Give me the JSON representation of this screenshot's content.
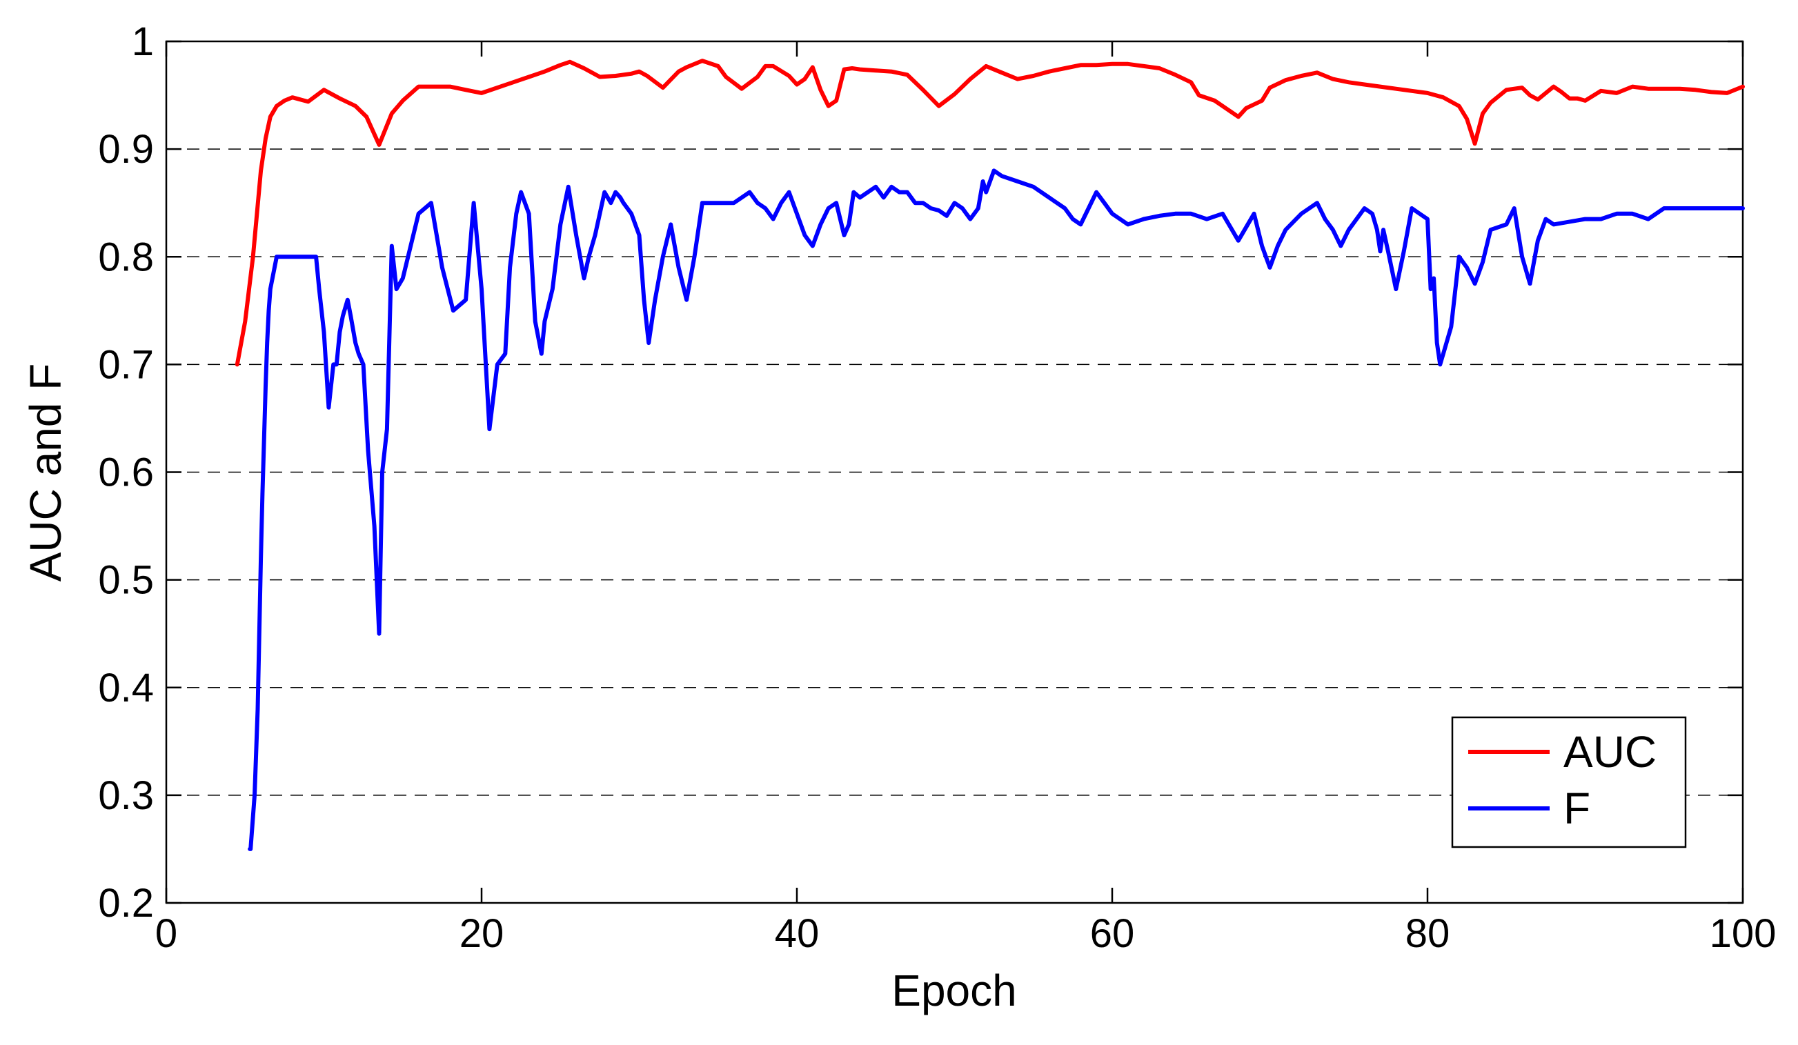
{
  "chart_data": {
    "type": "line",
    "title": "",
    "xlabel": "Epoch",
    "ylabel": "AUC and F",
    "xlim": [
      0,
      100
    ],
    "ylim": [
      0.2,
      1
    ],
    "x_ticks": [
      "0",
      "20",
      "40",
      "60",
      "80",
      "100"
    ],
    "y_ticks": [
      "0.2",
      "0.3",
      "0.4",
      "0.5",
      "0.6",
      "0.7",
      "0.8",
      "0.9",
      "1"
    ],
    "grid": "horizontal dashed",
    "legend_position": "bottom-right",
    "series": [
      {
        "name": "AUC",
        "color": "#ff0000",
        "x": [
          4.5,
          5,
          5.5,
          6,
          6.3,
          6.6,
          7,
          7.5,
          8,
          9,
          10,
          11,
          12,
          12.7,
          13.5,
          14.3,
          15,
          16,
          17,
          18,
          19,
          20,
          21,
          22,
          23,
          24,
          25,
          25.6,
          26.5,
          27.5,
          28.5,
          29.5,
          30,
          30.5,
          31.5,
          32.5,
          33,
          34,
          35,
          35.5,
          36.5,
          37.5,
          38,
          38.5,
          39.5,
          40,
          40.5,
          41,
          41.5,
          42,
          42.5,
          43,
          43.5,
          44,
          45,
          46,
          47,
          48,
          49,
          50,
          51,
          52,
          53,
          54,
          55,
          56,
          57,
          58,
          59,
          60,
          61,
          62,
          63,
          64,
          65,
          65.5,
          66.5,
          67.5,
          68,
          68.5,
          69.5,
          70,
          71,
          72,
          73,
          74,
          75,
          76,
          77,
          78,
          79,
          80,
          81,
          82,
          82.5,
          83,
          83.5,
          84,
          85,
          86,
          86.5,
          87,
          88,
          88.5,
          89,
          89.5,
          90,
          91,
          92,
          93,
          94,
          95,
          96,
          97,
          98,
          99,
          100
        ],
        "y": [
          0.7,
          0.74,
          0.8,
          0.88,
          0.91,
          0.93,
          0.94,
          0.945,
          0.948,
          0.944,
          0.955,
          0.947,
          0.94,
          0.93,
          0.904,
          0.933,
          0.945,
          0.958,
          0.958,
          0.958,
          0.955,
          0.952,
          0.957,
          0.962,
          0.967,
          0.972,
          0.978,
          0.981,
          0.975,
          0.967,
          0.968,
          0.97,
          0.972,
          0.968,
          0.957,
          0.972,
          0.976,
          0.982,
          0.977,
          0.967,
          0.956,
          0.967,
          0.977,
          0.977,
          0.968,
          0.96,
          0.965,
          0.976,
          0.955,
          0.94,
          0.945,
          0.974,
          0.975,
          0.974,
          0.973,
          0.972,
          0.969,
          0.955,
          0.94,
          0.951,
          0.965,
          0.977,
          0.971,
          0.965,
          0.968,
          0.972,
          0.975,
          0.978,
          0.978,
          0.979,
          0.979,
          0.977,
          0.975,
          0.969,
          0.962,
          0.95,
          0.945,
          0.935,
          0.93,
          0.938,
          0.945,
          0.957,
          0.964,
          0.968,
          0.971,
          0.965,
          0.962,
          0.96,
          0.958,
          0.956,
          0.954,
          0.952,
          0.948,
          0.94,
          0.928,
          0.905,
          0.933,
          0.943,
          0.955,
          0.957,
          0.95,
          0.946,
          0.958,
          0.953,
          0.947,
          0.947,
          0.945,
          0.954,
          0.952,
          0.958,
          0.956,
          0.956,
          0.956,
          0.955,
          0.953,
          0.952,
          0.958
        ]
      },
      {
        "name": "F",
        "color": "#0000ff",
        "x": [
          5.3,
          5.35,
          5.6,
          5.8,
          5.9,
          6.0,
          6.1,
          6.2,
          6.3,
          6.4,
          6.5,
          6.6,
          7,
          7.3,
          8,
          9,
          9.5,
          9.7,
          10,
          10.3,
          10.6,
          10.8,
          11,
          11.2,
          11.5,
          11.7,
          12,
          12.2,
          12.5,
          12.8,
          13.2,
          13.5,
          13.7,
          14,
          14.3,
          14.6,
          15,
          16,
          16.8,
          17.5,
          18.2,
          19,
          19.5,
          20,
          20.5,
          21,
          21.5,
          21.8,
          22.2,
          22.5,
          23,
          23.4,
          23.8,
          24,
          24.5,
          25,
          25.5,
          26,
          26.5,
          26.8,
          27.2,
          27.8,
          28.2,
          28.5,
          28.8,
          29,
          29.5,
          30,
          30.3,
          30.6,
          31,
          31.5,
          32,
          32.5,
          33,
          33.5,
          34,
          34.5,
          35,
          36,
          37,
          37.5,
          38,
          38.5,
          39,
          39.5,
          40,
          40.5,
          41,
          41.5,
          42,
          42.5,
          43,
          43.3,
          43.6,
          44,
          44.5,
          45,
          45.5,
          46,
          46.5,
          47,
          47.5,
          48,
          48.5,
          49,
          49.5,
          50,
          50.5,
          51,
          51.5,
          51.8,
          52,
          52.5,
          53,
          54,
          55,
          56,
          57,
          57.5,
          58,
          58.5,
          59,
          59.5,
          60,
          61,
          62,
          63,
          64,
          65,
          66,
          67,
          68,
          69,
          69.5,
          70,
          70.5,
          71,
          72,
          73,
          73.5,
          74,
          74.5,
          75,
          76,
          76.5,
          76.8,
          77,
          77.2,
          77.5,
          78,
          78.5,
          79,
          79.5,
          80,
          80.2,
          80.4,
          80.6,
          80.8,
          81,
          81.5,
          82,
          82.5,
          83,
          83.5,
          84,
          85,
          85.5,
          86,
          86.5,
          87,
          87.5,
          88,
          90,
          91,
          92,
          93,
          94,
          95,
          96,
          97,
          98,
          99,
          100
        ],
        "y": [
          0.25,
          0.25,
          0.3,
          0.38,
          0.45,
          0.52,
          0.58,
          0.63,
          0.68,
          0.72,
          0.75,
          0.77,
          0.8,
          0.8,
          0.8,
          0.8,
          0.8,
          0.77,
          0.73,
          0.66,
          0.7,
          0.7,
          0.73,
          0.745,
          0.76,
          0.745,
          0.72,
          0.71,
          0.7,
          0.62,
          0.55,
          0.45,
          0.6,
          0.64,
          0.81,
          0.77,
          0.78,
          0.84,
          0.85,
          0.79,
          0.75,
          0.76,
          0.85,
          0.77,
          0.64,
          0.7,
          0.71,
          0.79,
          0.84,
          0.86,
          0.84,
          0.74,
          0.71,
          0.74,
          0.77,
          0.83,
          0.865,
          0.82,
          0.78,
          0.8,
          0.82,
          0.86,
          0.85,
          0.86,
          0.855,
          0.85,
          0.84,
          0.82,
          0.76,
          0.72,
          0.76,
          0.8,
          0.83,
          0.79,
          0.76,
          0.8,
          0.85,
          0.85,
          0.85,
          0.85,
          0.86,
          0.85,
          0.845,
          0.835,
          0.85,
          0.86,
          0.84,
          0.82,
          0.81,
          0.83,
          0.845,
          0.85,
          0.82,
          0.83,
          0.86,
          0.855,
          0.86,
          0.865,
          0.855,
          0.865,
          0.86,
          0.86,
          0.85,
          0.85,
          0.845,
          0.843,
          0.838,
          0.85,
          0.845,
          0.835,
          0.845,
          0.87,
          0.86,
          0.88,
          0.875,
          0.87,
          0.865,
          0.855,
          0.845,
          0.835,
          0.83,
          0.845,
          0.86,
          0.85,
          0.84,
          0.83,
          0.835,
          0.838,
          0.84,
          0.84,
          0.835,
          0.84,
          0.815,
          0.84,
          0.81,
          0.79,
          0.81,
          0.825,
          0.84,
          0.85,
          0.835,
          0.825,
          0.81,
          0.825,
          0.845,
          0.84,
          0.825,
          0.805,
          0.825,
          0.805,
          0.77,
          0.805,
          0.845,
          0.84,
          0.835,
          0.77,
          0.78,
          0.72,
          0.7,
          0.71,
          0.735,
          0.8,
          0.79,
          0.775,
          0.795,
          0.825,
          0.83,
          0.845,
          0.8,
          0.775,
          0.815,
          0.835,
          0.83,
          0.835,
          0.835,
          0.84,
          0.84,
          0.835,
          0.845,
          0.845,
          0.845,
          0.845,
          0.845,
          0.845
        ]
      }
    ]
  }
}
